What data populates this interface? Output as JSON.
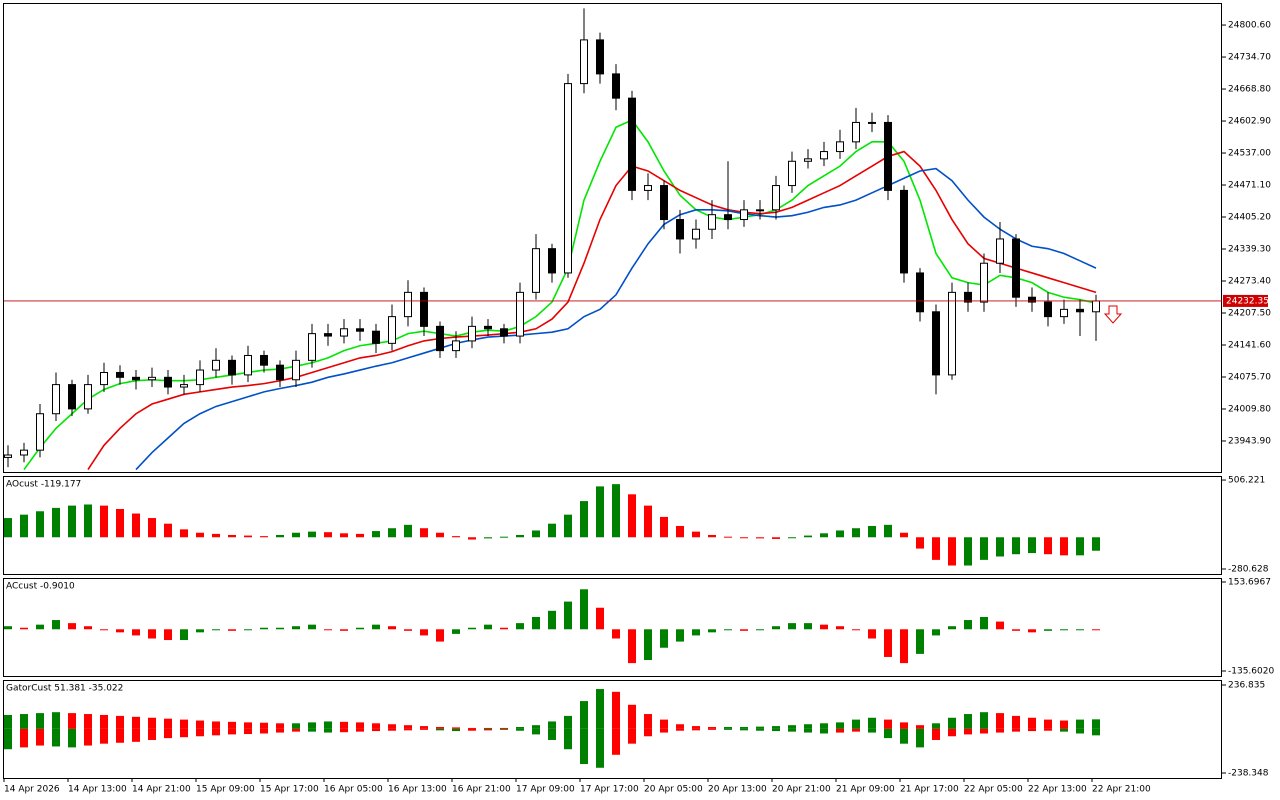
{
  "chart_data": [
    {
      "type": "candlestick",
      "categories": [
        "14 Apr 2026",
        null,
        null,
        null,
        "14 Apr 13:00",
        null,
        null,
        null,
        "14 Apr 21:00",
        null,
        null,
        null,
        "15 Apr 09:00",
        null,
        null,
        null,
        "15 Apr 17:00",
        null,
        null,
        null,
        "16 Apr 05:00",
        null,
        null,
        null,
        "16 Apr 13:00",
        null,
        null,
        null,
        "16 Apr 21:00",
        null,
        null,
        null,
        "17 Apr 09:00",
        null,
        null,
        null,
        "17 Apr 17:00",
        null,
        null,
        null,
        "20 Apr 05:00",
        null,
        null,
        null,
        "20 Apr 13:00",
        null,
        null,
        null,
        "20 Apr 21:00",
        null,
        null,
        null,
        "21 Apr 09:00",
        null,
        null,
        null,
        "21 Apr 17:00",
        null,
        null,
        null,
        "22 Apr 05:00",
        null,
        null,
        null,
        "22 Apr 13:00",
        null,
        null,
        null,
        "22 Apr 21:00"
      ],
      "open": [
        23910,
        23915,
        23925,
        24000,
        24060,
        24010,
        24060,
        24085,
        24075,
        24070,
        24075,
        24055,
        24060,
        24090,
        24110,
        24080,
        24120,
        24100,
        24070,
        24110,
        24165,
        24160,
        24175,
        24170,
        24145,
        24200,
        24250,
        24180,
        24130,
        24150,
        24180,
        24175,
        24160,
        24250,
        24340,
        24290,
        24680,
        24770,
        24700,
        24650,
        24460,
        24470,
        24400,
        24360,
        24380,
        24410,
        24400,
        24420,
        24420,
        24470,
        24520,
        24525,
        24540,
        24560,
        24600,
        24600,
        24460,
        24290,
        24210,
        24080,
        24250,
        24230,
        24310,
        24360,
        24240,
        24230,
        24200,
        24215,
        24210
      ],
      "high": [
        23935,
        23940,
        24020,
        24085,
        24070,
        24080,
        24105,
        24100,
        24090,
        24095,
        24090,
        24080,
        24110,
        24135,
        24120,
        24140,
        24130,
        24110,
        24130,
        24185,
        24185,
        24195,
        24195,
        24185,
        24225,
        24275,
        24260,
        24190,
        24170,
        24200,
        24195,
        24185,
        24270,
        24370,
        24350,
        24700,
        24835,
        24785,
        24720,
        24665,
        24495,
        24480,
        24420,
        24400,
        24440,
        24520,
        24440,
        24440,
        24490,
        24540,
        24545,
        24560,
        24585,
        24630,
        24620,
        24615,
        24470,
        24300,
        24225,
        24270,
        24270,
        24330,
        24395,
        24370,
        24260,
        24250,
        24235,
        24235,
        24245
      ],
      "low": [
        23890,
        23900,
        23910,
        23985,
        23995,
        24000,
        24045,
        24060,
        24050,
        24055,
        24040,
        24040,
        24045,
        24075,
        24060,
        24065,
        24085,
        24055,
        24055,
        24095,
        24140,
        24145,
        24150,
        24125,
        24130,
        24180,
        24160,
        24115,
        24115,
        24135,
        24160,
        24145,
        24145,
        24235,
        24270,
        24280,
        24660,
        24680,
        24625,
        24440,
        24440,
        24380,
        24330,
        24340,
        24360,
        24380,
        24385,
        24400,
        24400,
        24455,
        24505,
        24510,
        24525,
        24545,
        24580,
        24440,
        24270,
        24190,
        24040,
        24070,
        24210,
        24210,
        24290,
        24220,
        24210,
        24180,
        24185,
        24160,
        24150
      ],
      "close": [
        23915,
        23925,
        24000,
        24060,
        24010,
        24060,
        24085,
        24075,
        24070,
        24075,
        24055,
        24060,
        24090,
        24110,
        24080,
        24120,
        24100,
        24070,
        24110,
        24165,
        24160,
        24175,
        24170,
        24145,
        24200,
        24250,
        24180,
        24130,
        24150,
        24180,
        24175,
        24160,
        24250,
        24340,
        24290,
        24680,
        24770,
        24700,
        24650,
        24460,
        24470,
        24400,
        24360,
        24380,
        24410,
        24400,
        24420,
        24420,
        24470,
        24520,
        24525,
        24540,
        24560,
        24600,
        24600,
        24460,
        24290,
        24210,
        24080,
        24250,
        24230,
        24310,
        24360,
        24240,
        24230,
        24200,
        24215,
        24210,
        24232.35
      ],
      "up_color": "#ffffff",
      "down_color": "#000000",
      "lines": [
        {
          "color": "#00e600",
          "values": [
            null,
            23885,
            23930,
            23970,
            24000,
            24030,
            24050,
            24062,
            24068,
            24070,
            24068,
            24068,
            24070,
            24075,
            24080,
            24085,
            24090,
            24092,
            24098,
            24105,
            24115,
            24130,
            24140,
            24145,
            24150,
            24165,
            24170,
            24165,
            24160,
            24168,
            24172,
            24170,
            24180,
            24200,
            24230,
            24300,
            24440,
            24520,
            24590,
            24605,
            24560,
            24500,
            24450,
            24420,
            24405,
            24400,
            24405,
            24410,
            24420,
            24440,
            24470,
            24490,
            24510,
            24540,
            24560,
            24560,
            24520,
            24440,
            24330,
            24280,
            24270,
            24265,
            24285,
            24280,
            24270,
            24250,
            24240,
            24235,
            24228
          ]
        },
        {
          "color": "#e60000",
          "values": [
            null,
            null,
            null,
            null,
            null,
            23885,
            23935,
            23970,
            24000,
            24020,
            24030,
            24040,
            24045,
            24050,
            24055,
            24058,
            24062,
            24068,
            24075,
            24085,
            24095,
            24105,
            24115,
            24120,
            24128,
            24140,
            24150,
            24155,
            24158,
            24160,
            24162,
            24165,
            24168,
            24175,
            24195,
            24230,
            24310,
            24400,
            24470,
            24510,
            24500,
            24480,
            24460,
            24445,
            24430,
            24420,
            24415,
            24412,
            24415,
            24425,
            24440,
            24455,
            24470,
            24490,
            24510,
            24530,
            24540,
            24510,
            24460,
            24400,
            24350,
            24320,
            24310,
            24300,
            24290,
            24280,
            24270,
            24260,
            24250
          ]
        },
        {
          "color": "#0050c8",
          "values": [
            null,
            null,
            null,
            null,
            null,
            null,
            null,
            null,
            23885,
            23920,
            23950,
            23980,
            24000,
            24015,
            24025,
            24035,
            24045,
            24052,
            24058,
            24065,
            24075,
            24082,
            24090,
            24098,
            24105,
            24115,
            24125,
            24135,
            24145,
            24152,
            24158,
            24160,
            24162,
            24165,
            24168,
            24175,
            24200,
            24215,
            24245,
            24300,
            24350,
            24390,
            24410,
            24420,
            24420,
            24418,
            24412,
            24408,
            24405,
            24408,
            24415,
            24425,
            24430,
            24440,
            24455,
            24470,
            24485,
            24500,
            24505,
            24480,
            24440,
            24405,
            24380,
            24360,
            24345,
            24340,
            24330,
            24315,
            24300
          ]
        }
      ],
      "last_price": {
        "value": 24232.35,
        "label": "24232.35"
      },
      "ylim": [
        23880,
        24846
      ],
      "yticks": [
        {
          "value": 24800.6,
          "label": "24800.60"
        },
        {
          "value": 24734.7,
          "label": "24734.70"
        },
        {
          "value": 24668.8,
          "label": "24668.80"
        },
        {
          "value": 24602.9,
          "label": "24602.90"
        },
        {
          "value": 24537,
          "label": "24537.00"
        },
        {
          "value": 24471.1,
          "label": "24471.10"
        },
        {
          "value": 24405.2,
          "label": "24405.20"
        },
        {
          "value": 24339.3,
          "label": "24339.30"
        },
        {
          "value": 24273.4,
          "label": "24273.40"
        },
        {
          "value": 24207.5,
          "label": "24207.50"
        },
        {
          "value": 24141.6,
          "label": "24141.60"
        },
        {
          "value": 24075.7,
          "label": "24075.70"
        },
        {
          "value": 24009.8,
          "label": "24009.80"
        },
        {
          "value": 23943.9,
          "label": "23943.90"
        }
      ]
    },
    {
      "type": "bar",
      "title": "AOcust -119.177",
      "up_color": "#008000",
      "down_color": "#ff0000",
      "ylim": [
        -325,
        542
      ],
      "yticks": [
        506.221,
        -280.628
      ],
      "values": [
        170,
        200,
        230,
        260,
        280,
        290,
        280,
        250,
        210,
        170,
        120,
        70,
        40,
        30,
        20,
        15,
        10,
        20,
        40,
        50,
        45,
        35,
        30,
        55,
        80,
        110,
        80,
        40,
        10,
        -20,
        -10,
        5,
        20,
        60,
        120,
        200,
        320,
        450,
        470,
        380,
        280,
        180,
        100,
        50,
        20,
        5,
        -5,
        -10,
        -15,
        0,
        15,
        35,
        60,
        80,
        100,
        110,
        40,
        -100,
        -200,
        -250,
        -250,
        -200,
        -170,
        -150,
        -140,
        -150,
        -160,
        -160,
        -119.177
      ]
    },
    {
      "type": "bar",
      "title": "ACcust -0.9010",
      "up_color": "#008000",
      "down_color": "#ff0000",
      "ylim": [
        -151.9,
        166.7
      ],
      "yticks": [
        153.6967,
        {
          "value": -135.602,
          "label": "-135.6020"
        }
      ],
      "values": [
        10,
        5,
        15,
        30,
        20,
        10,
        0,
        -10,
        -20,
        -30,
        -35,
        -35,
        -10,
        0,
        -5,
        0,
        5,
        5,
        10,
        15,
        0,
        -5,
        5,
        15,
        10,
        -5,
        -20,
        -40,
        -15,
        5,
        15,
        5,
        20,
        40,
        60,
        90,
        130,
        70,
        -30,
        -110,
        -100,
        -60,
        -40,
        -20,
        -10,
        0,
        -5,
        0,
        10,
        20,
        20,
        15,
        10,
        0,
        -30,
        -90,
        -110,
        -80,
        -20,
        10,
        30,
        40,
        25,
        -5,
        -10,
        -5,
        0,
        0,
        -0.901
      ]
    },
    {
      "type": "gator",
      "title": "GatorCust 51.381 -35.022",
      "up_color": "#008000",
      "down_color": "#ff0000",
      "ylim": [
        -265.3,
        263.8
      ],
      "yticks": [
        236.835,
        -238.348
      ],
      "upper": [
        75,
        80,
        85,
        90,
        85,
        80,
        75,
        70,
        65,
        60,
        55,
        50,
        45,
        40,
        38,
        35,
        33,
        30,
        30,
        35,
        40,
        38,
        35,
        30,
        25,
        20,
        15,
        10,
        8,
        5,
        5,
        5,
        10,
        20,
        40,
        70,
        150,
        215,
        200,
        130,
        80,
        50,
        25,
        15,
        10,
        10,
        10,
        12,
        15,
        20,
        25,
        30,
        35,
        50,
        60,
        50,
        35,
        20,
        30,
        60,
        80,
        90,
        85,
        70,
        60,
        50,
        45,
        50,
        51.381
      ],
      "lower": [
        -110,
        -100,
        -90,
        -95,
        -100,
        -90,
        -80,
        -75,
        -70,
        -60,
        -50,
        -45,
        -40,
        -35,
        -30,
        -28,
        -25,
        -20,
        -15,
        -15,
        -20,
        -18,
        -15,
        -12,
        -10,
        -8,
        -5,
        -8,
        -12,
        -10,
        -8,
        -5,
        -10,
        -30,
        -60,
        -110,
        -190,
        -210,
        -140,
        -80,
        -40,
        -20,
        -10,
        -8,
        -5,
        -5,
        -8,
        -10,
        -12,
        -15,
        -20,
        -25,
        -20,
        -15,
        -20,
        -50,
        -80,
        -100,
        -60,
        -40,
        -30,
        -25,
        -20,
        -15,
        -12,
        -10,
        -15,
        -25,
        -35.022
      ]
    }
  ]
}
